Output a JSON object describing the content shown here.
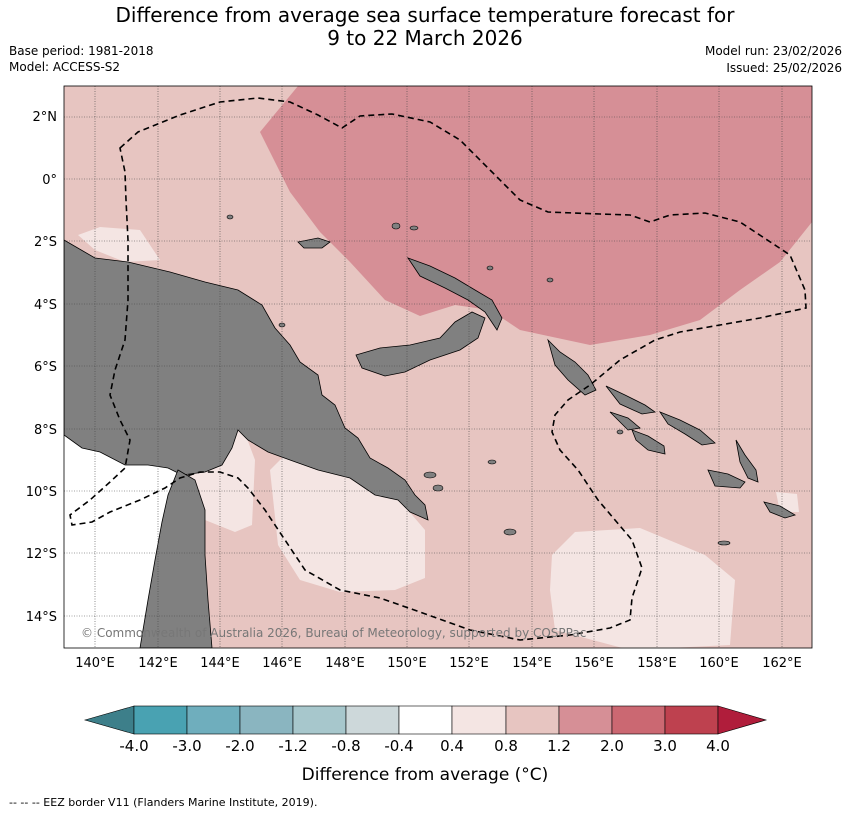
{
  "header": {
    "title_line1": "Difference from average sea surface temperature forecast for",
    "title_line2": "9 to 22 March 2026",
    "base_period": "Base period: 1981-2018",
    "model": "Model: ACCESS-S2",
    "model_run": "Model run: 23/02/2026",
    "issued": "Issued: 25/02/2026"
  },
  "map": {
    "lat_labels": [
      "2°N",
      "0°",
      "2°S",
      "4°S",
      "6°S",
      "8°S",
      "10°S",
      "12°S",
      "14°S"
    ],
    "lon_labels": [
      "140°E",
      "142°E",
      "144°E",
      "146°E",
      "148°E",
      "150°E",
      "152°E",
      "154°E",
      "156°E",
      "158°E",
      "160°E",
      "162°E"
    ],
    "copyright": "© Commonwealth of Australia 2026, Bureau of Meteorology, supported by COSPPac",
    "colors": {
      "band_0_4_to_0_8": "#f4e5e3",
      "band_0_8_to_1_2": "#e7c5c1",
      "band_1_2_to_2_0": "#d68f96",
      "land": "#808080",
      "outside": "#ffffff"
    }
  },
  "colorbar": {
    "ticks": [
      "-4.0",
      "-3.0",
      "-2.0",
      "-1.2",
      "-0.8",
      "-0.4",
      "0.4",
      "0.8",
      "1.2",
      "2.0",
      "3.0",
      "4.0"
    ],
    "colors": [
      "#3d7f8a",
      "#49a2b2",
      "#6faebd",
      "#8ab5c0",
      "#a7c7cc",
      "#cdd8da",
      "#ffffff",
      "#f4e5e3",
      "#e7c5c1",
      "#d68f96",
      "#cb6872",
      "#be414f",
      "#b01d3b"
    ],
    "title": "Difference from average (°C)"
  },
  "footnote": "--  --  -- EEZ border V11 (Flanders Marine Institute, 2019)."
}
